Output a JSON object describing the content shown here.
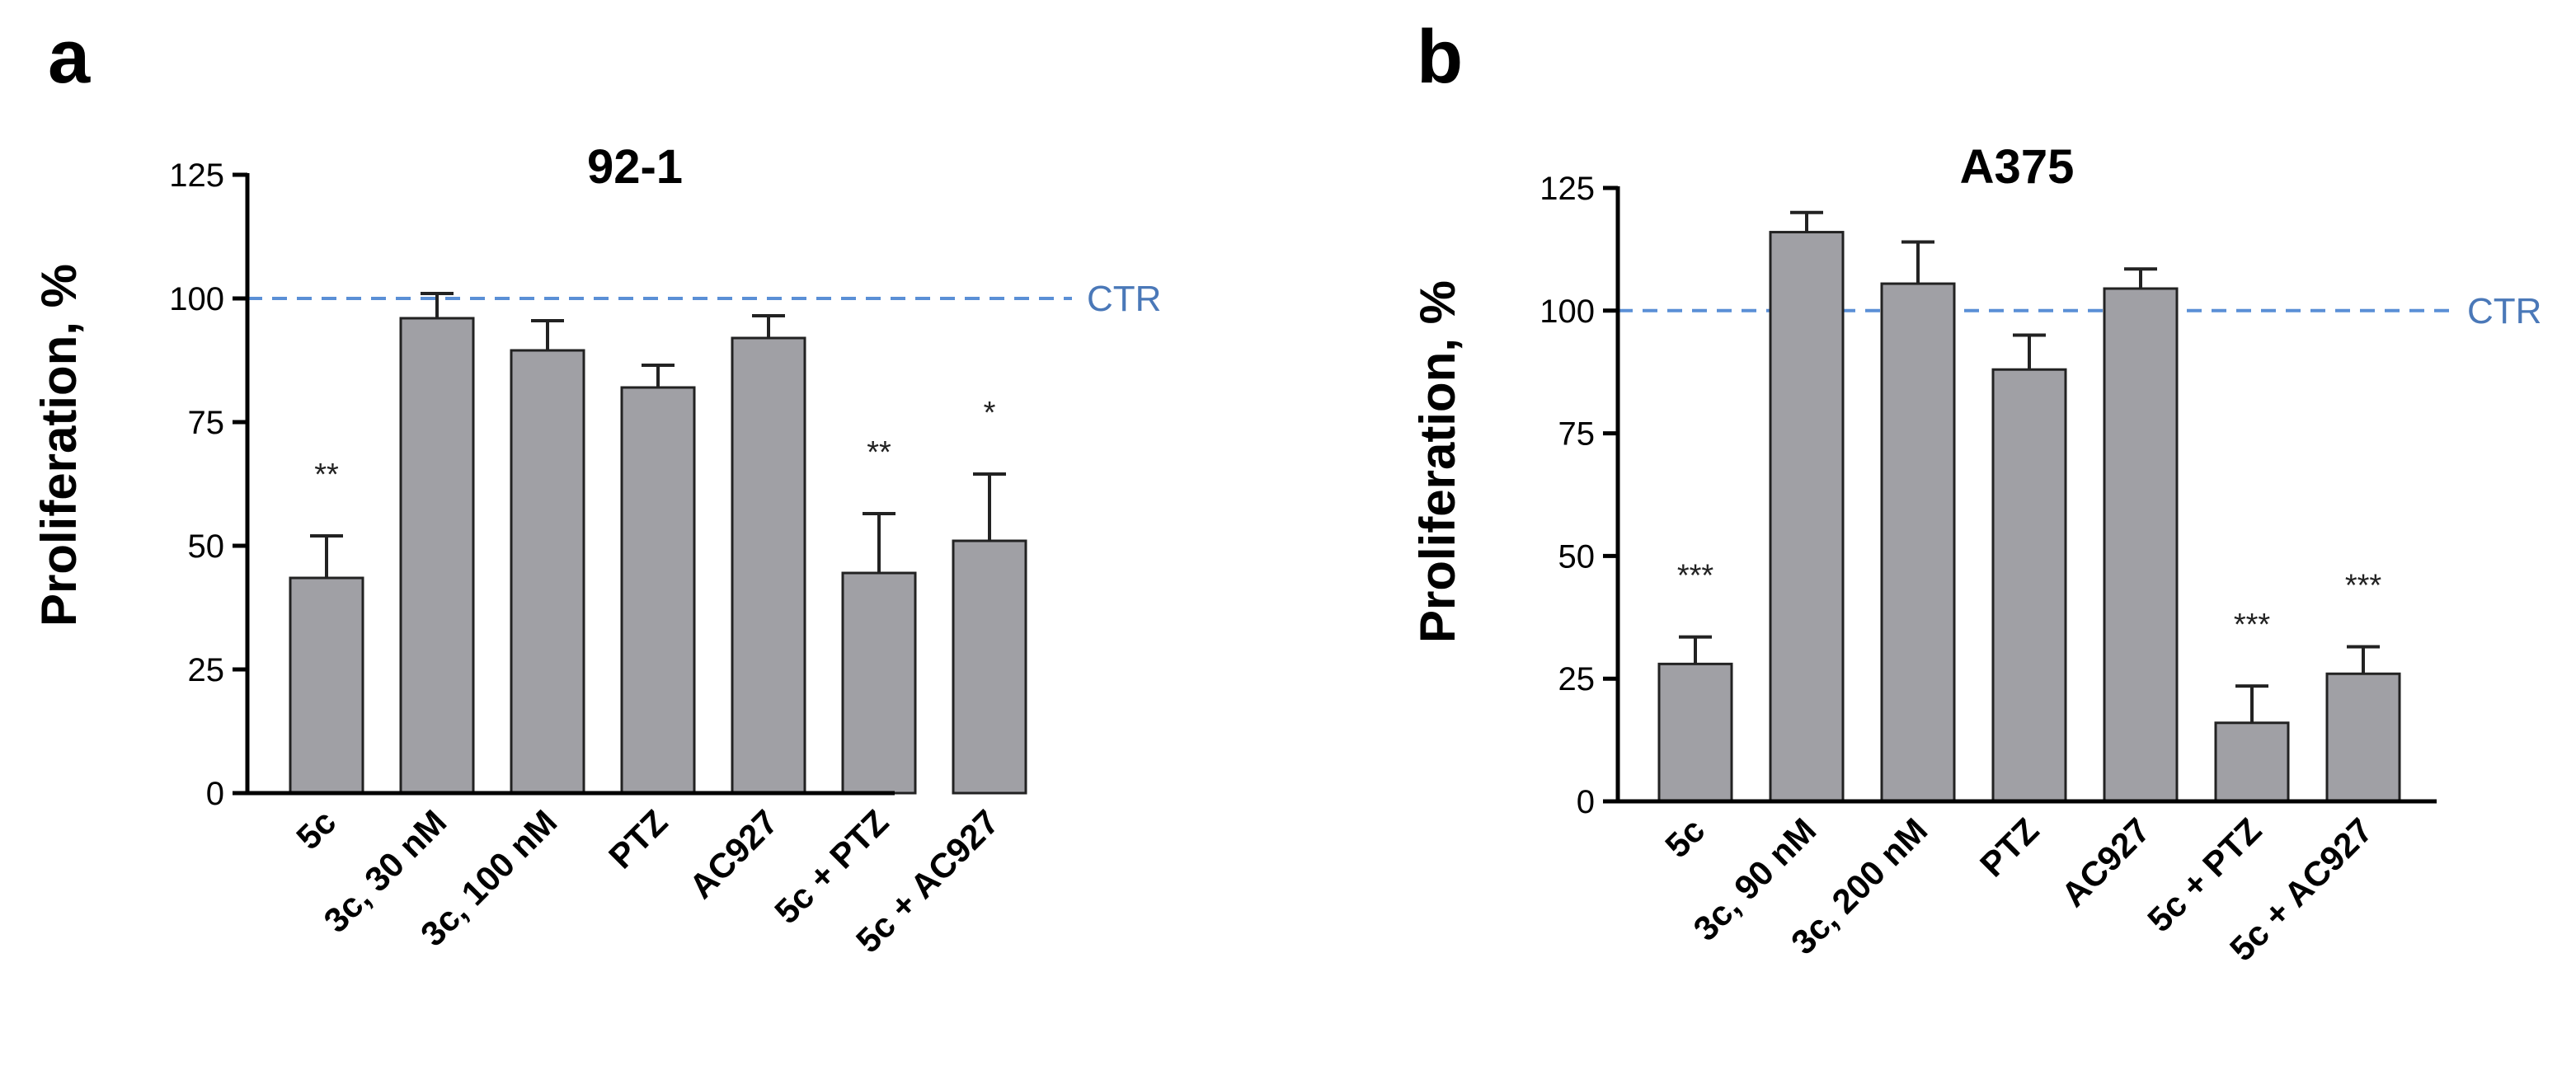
{
  "panels": {
    "a": "a",
    "b": "b"
  },
  "colors": {
    "bar_fill": "#a0a0a5",
    "bar_stroke": "#222222",
    "axis": "#000000",
    "reference_line": "#5a8fd6",
    "reference_text": "#4a78b8"
  },
  "chart_data": [
    {
      "type": "bar",
      "panel": "a",
      "title": "92-1",
      "xlabel": "",
      "ylabel": "Proliferation, %",
      "ylim": [
        0,
        125
      ],
      "yticks": [
        0,
        25,
        50,
        75,
        100,
        125
      ],
      "grid": false,
      "categories": [
        "5c",
        "3c, 30 nM",
        "3c, 100 nM",
        "PTZ",
        "AC927",
        "5c + PTZ",
        "5c + AC927"
      ],
      "values": [
        43.5,
        96,
        89.5,
        82,
        92,
        44.5,
        51
      ],
      "error": [
        8.5,
        5,
        6,
        4.5,
        4.5,
        12,
        13.5
      ],
      "significance": [
        "**",
        "",
        "",
        "",
        "",
        "**",
        "*"
      ],
      "reference_line": {
        "value": 100,
        "label": "CTR"
      }
    },
    {
      "type": "bar",
      "panel": "b",
      "title": "A375",
      "xlabel": "",
      "ylabel": "Proliferation, %",
      "ylim": [
        0,
        125
      ],
      "yticks": [
        0,
        25,
        50,
        75,
        100,
        125
      ],
      "grid": false,
      "categories": [
        "5c",
        "3c, 90 nM",
        "3c, 200 nM",
        "PTZ",
        "AC927",
        "5c + PTZ",
        "5c + AC927"
      ],
      "values": [
        28,
        116,
        105.5,
        88,
        104.5,
        16,
        26
      ],
      "error": [
        5.5,
        4,
        8.5,
        7,
        4,
        7.5,
        5.5
      ],
      "significance": [
        "***",
        "",
        "",
        "",
        "",
        "***",
        "***"
      ],
      "reference_line": {
        "value": 100,
        "label": "CTR"
      }
    }
  ]
}
